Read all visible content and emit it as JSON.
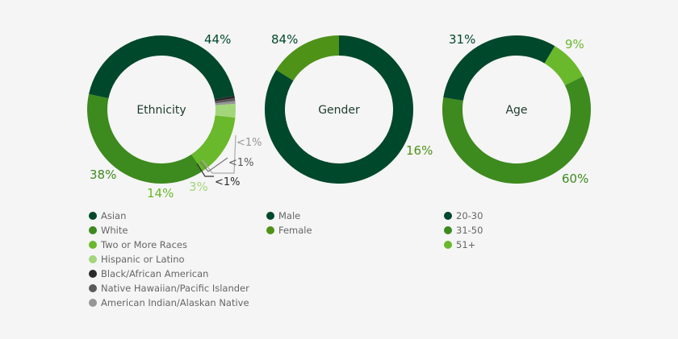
{
  "colors": {
    "asian": "#00482b",
    "white": "#3d8a1e",
    "two_or_more": "#6ab82b",
    "hispanic": "#a3d67a",
    "black": "#2a2a2a",
    "hawaiian": "#5a5a5a",
    "american_indian": "#969696",
    "male": "#00482b",
    "female": "#4e9218",
    "age_20_30": "#00482b",
    "age_31_50": "#3d8a1e",
    "age_51_plus": "#6ab82b"
  },
  "chart_data": [
    {
      "type": "pie",
      "title": "Ethnicity",
      "slices": [
        {
          "name": "Asian",
          "value": 44,
          "label": "44%",
          "color_key": "asian"
        },
        {
          "name": "Black/African American",
          "value": 0.6,
          "label": "<1%",
          "color_key": "black"
        },
        {
          "name": "Native Hawaiian/Pacific Islander",
          "value": 0.6,
          "label": "<1%",
          "color_key": "hawaiian"
        },
        {
          "name": "American Indian/Alaskan Native",
          "value": 0.6,
          "label": "<1%",
          "color_key": "american_indian"
        },
        {
          "name": "Hispanic or Latino",
          "value": 3,
          "label": "3%",
          "color_key": "hispanic"
        },
        {
          "name": "Two or More Races",
          "value": 14,
          "label": "14%",
          "color_key": "two_or_more"
        },
        {
          "name": "White",
          "value": 38,
          "label": "38%",
          "color_key": "white"
        }
      ],
      "legend": [
        "Asian",
        "White",
        "Two or More Races",
        "Hispanic or Latino",
        "Black/African American",
        "Native Hawaiian/Pacific Islander",
        "American Indian/Alaskan Native"
      ],
      "legend_colors": [
        "asian",
        "white",
        "two_or_more",
        "hispanic",
        "black",
        "hawaiian",
        "american_indian"
      ]
    },
    {
      "type": "pie",
      "title": "Gender",
      "slices": [
        {
          "name": "Male",
          "value": 84,
          "label": "84%",
          "color_key": "male"
        },
        {
          "name": "Female",
          "value": 16,
          "label": "16%",
          "color_key": "female"
        }
      ],
      "legend": [
        "Male",
        "Female"
      ],
      "legend_colors": [
        "male",
        "female"
      ]
    },
    {
      "type": "pie",
      "title": "Age",
      "slices": [
        {
          "name": "51+",
          "value": 9,
          "label": "9%",
          "color_key": "age_51_plus"
        },
        {
          "name": "31-50",
          "value": 60,
          "label": "60%",
          "color_key": "age_31_50"
        },
        {
          "name": "20-30",
          "value": 31,
          "label": "31%",
          "color_key": "age_20_30"
        }
      ],
      "legend": [
        "20-30",
        "31-50",
        "51+"
      ],
      "legend_colors": [
        "age_20_30",
        "age_31_50",
        "age_51_plus"
      ]
    }
  ]
}
